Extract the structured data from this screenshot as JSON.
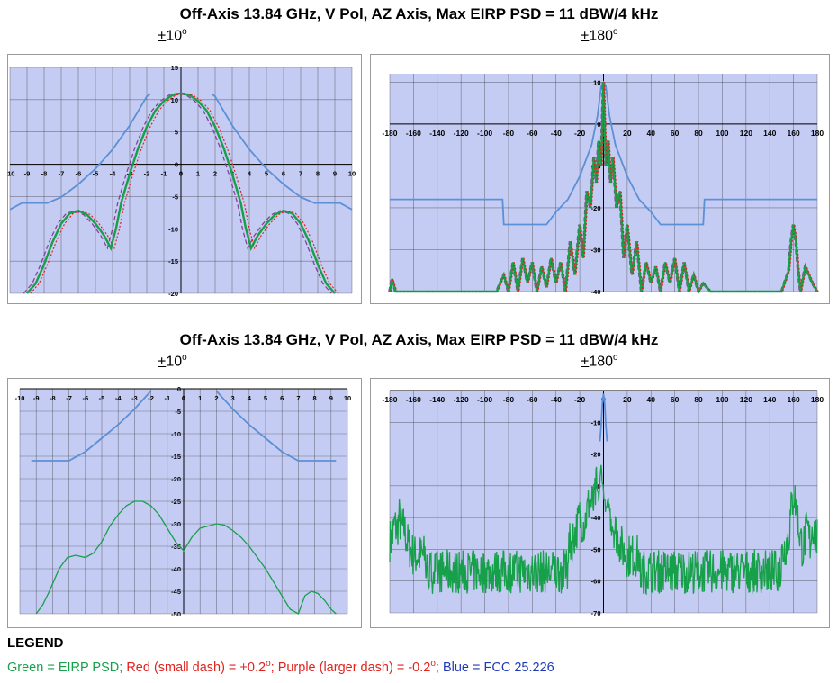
{
  "titles": {
    "top": "Off-Axis 13.84 GHz, V Pol, AZ Axis, Max EIRP PSD = 11 dBW/4 kHz",
    "bottom": "Off-Axis 13.84 GHz, V Pol, AZ Axis, Max EIRP PSD = 11 dBW/4 kHz"
  },
  "subtitles": {
    "p1": "10",
    "p2": "180",
    "p3": "10",
    "p4": "180",
    "pm": "+",
    "deg": "o"
  },
  "legend": {
    "heading": "LEGEND",
    "green": "Green = EIRP PSD;",
    "red": "Red (small dash) = +0.2",
    "red_tail": ";",
    "purple": "Purple (larger dash) = -0.2",
    "purple_tail": ";",
    "blue": "Blue = FCC 25.226",
    "deg": "o"
  },
  "colors": {
    "plot_bg": "#c5ccf3",
    "grid": "#2a2a2a",
    "green": "#17a04a",
    "red": "#e0231f",
    "purple": "#8a3f9a",
    "blue": "#5b8fd6"
  },
  "chart_data": [
    {
      "type": "line",
      "xlim": [
        -10,
        10
      ],
      "ylim": [
        -20,
        15
      ],
      "xticks": [
        "-10",
        "-9",
        "-8",
        "-7",
        "-6",
        "-5",
        "-4",
        "-3",
        "-2",
        "-1",
        "0",
        "1",
        "2",
        "3",
        "4",
        "5",
        "6",
        "7",
        "8",
        "9",
        "10"
      ],
      "yticks": [
        "15",
        "10",
        "5",
        "0",
        "-5",
        "-10",
        "-15",
        "-20"
      ],
      "series": [
        {
          "color": "blue",
          "x": [
            -10,
            -9.3,
            -7.8,
            -7,
            -6,
            -5,
            -4,
            -3,
            -2,
            -1.8
          ],
          "y": [
            -7,
            -6,
            -6,
            -5.1,
            -3.1,
            -0.7,
            2.3,
            6,
            10.5,
            10.9
          ]
        },
        {
          "color": "blue",
          "x": [
            1.8,
            2,
            3,
            4,
            5,
            6,
            7,
            7.8,
            9.3,
            10
          ],
          "y": [
            10.9,
            10.5,
            6,
            2.3,
            -0.7,
            -3.1,
            -5.1,
            -6,
            -6,
            -7
          ]
        },
        {
          "color": "green",
          "x": [
            -9,
            -8.5,
            -8,
            -7.5,
            -7,
            -6.5,
            -6,
            -5.5,
            -5,
            -4.5,
            -4.1,
            -3.8,
            -3.5,
            -3,
            -2.5,
            -2,
            -1.5,
            -1,
            -0.5,
            0,
            0.5,
            1,
            1.5,
            2,
            2.5,
            3,
            3.5,
            3.8,
            4.1,
            4.5,
            5,
            5.5,
            6,
            6.5,
            7,
            7.5,
            8,
            8.5,
            9
          ],
          "y": [
            -20,
            -18.5,
            -15.5,
            -12,
            -9.2,
            -7.6,
            -7.2,
            -7.8,
            -9.2,
            -11,
            -13,
            -10,
            -6,
            -1.5,
            2.5,
            5.8,
            8.3,
            9.8,
            10.7,
            11,
            10.7,
            9.8,
            8.3,
            5.8,
            2.5,
            -1.5,
            -6,
            -10,
            -13,
            -11,
            -9.2,
            -7.8,
            -7.2,
            -7.6,
            -9.2,
            -12,
            -15.5,
            -18.5,
            -20
          ]
        }
      ]
    },
    {
      "type": "line",
      "xlim": [
        -180,
        180
      ],
      "ylim": [
        -40,
        12
      ],
      "xticks": [
        "-180",
        "-160",
        "-140",
        "-120",
        "-100",
        "-80",
        "-60",
        "-40",
        "-20",
        "0",
        "20",
        "40",
        "60",
        "80",
        "100",
        "120",
        "140",
        "160",
        "180"
      ],
      "yticks": [
        "10",
        "0",
        "-10",
        "-20",
        "-30",
        "-40"
      ],
      "series": [
        {
          "color": "blue",
          "x": [
            -180,
            -105,
            -104,
            -85,
            -84,
            -48,
            -40,
            -30,
            -20,
            -10,
            -5,
            -2,
            0,
            2,
            5,
            10,
            20,
            30,
            40,
            48,
            84,
            85,
            104,
            105,
            180
          ],
          "y": [
            -18,
            -18,
            -18,
            -18,
            -24,
            -24,
            -21,
            -18,
            -12.5,
            -5,
            2,
            9,
            10,
            9,
            2,
            -5,
            -12.5,
            -18,
            -21,
            -24,
            -24,
            -18,
            -18,
            -18,
            -18
          ]
        },
        {
          "color": "green",
          "x": [
            -180,
            -178,
            -175,
            -170,
            -100,
            -90,
            -84,
            -80,
            -76,
            -72,
            -68,
            -64,
            -60,
            -56,
            -52,
            -48,
            -44,
            -40,
            -36,
            -32,
            -28,
            -24,
            -20,
            -17,
            -14,
            -11,
            -8,
            -6,
            -4,
            -2,
            0,
            2,
            4,
            6,
            8,
            11,
            14,
            17,
            20,
            24,
            28,
            32,
            36,
            40,
            44,
            48,
            52,
            56,
            60,
            64,
            68,
            72,
            76,
            80,
            84,
            90,
            100,
            140,
            150,
            156,
            158,
            160,
            162,
            164,
            166,
            170,
            176,
            180
          ],
          "y": [
            -40,
            -37,
            -40,
            -40,
            -40,
            -40,
            -36,
            -40,
            -33,
            -40,
            -32,
            -38,
            -33,
            -40,
            -34,
            -39,
            -32,
            -38,
            -33,
            -40,
            -28,
            -36,
            -24,
            -32,
            -16,
            -20,
            -8,
            -14,
            -4,
            -10,
            10,
            -10,
            -4,
            -14,
            -8,
            -20,
            -16,
            -32,
            -24,
            -36,
            -28,
            -40,
            -33,
            -38,
            -34,
            -40,
            -33,
            -38,
            -32,
            -40,
            -33,
            -40,
            -36,
            -40,
            -38,
            -40,
            -40,
            -40,
            -40,
            -35,
            -28,
            -24,
            -28,
            -35,
            -40,
            -34,
            -38,
            -40
          ]
        }
      ]
    },
    {
      "type": "line",
      "xlim": [
        -10,
        10
      ],
      "ylim": [
        -50,
        0
      ],
      "xticks": [
        "-10",
        "-9",
        "-8",
        "-7",
        "-6",
        "-5",
        "-4",
        "-3",
        "-2",
        "-1",
        "0",
        "1",
        "2",
        "3",
        "4",
        "5",
        "6",
        "7",
        "8",
        "9",
        "10"
      ],
      "yticks": [
        "0",
        "-5",
        "-10",
        "-15",
        "-20",
        "-25",
        "-30",
        "-35",
        "-40",
        "-45",
        "-50"
      ],
      "series": [
        {
          "color": "blue",
          "x": [
            -9.3,
            -7,
            -6,
            -5,
            -4,
            -3,
            -2
          ],
          "y": [
            -16,
            -16,
            -14,
            -11,
            -8,
            -4.5,
            -0.5
          ]
        },
        {
          "color": "blue",
          "x": [
            2,
            3,
            4,
            5,
            6,
            7,
            9.3
          ],
          "y": [
            -0.5,
            -4.5,
            -8,
            -11,
            -14,
            -16,
            -16
          ]
        },
        {
          "color": "green",
          "x": [
            -9,
            -8.6,
            -8.2,
            -7.6,
            -7.1,
            -6.6,
            -6,
            -5.5,
            -5,
            -4.5,
            -4,
            -3.5,
            -3,
            -2.5,
            -2,
            -1.5,
            -1,
            -0.5,
            0,
            0.5,
            1,
            1.5,
            2,
            2.5,
            3,
            3.5,
            4,
            4.5,
            5,
            5.5,
            6,
            6.5,
            7,
            7.4,
            7.8,
            8.2,
            8.6,
            9,
            9.3
          ],
          "y": [
            -50,
            -48,
            -45,
            -40,
            -37.5,
            -37,
            -37.5,
            -36.5,
            -34,
            -30.5,
            -28,
            -26,
            -25,
            -25,
            -26,
            -28,
            -31,
            -34,
            -36,
            -33,
            -31,
            -30.5,
            -30,
            -30.3,
            -31.5,
            -33,
            -35,
            -37.5,
            -40,
            -43,
            -46,
            -49,
            -50,
            -46,
            -45,
            -45.5,
            -47,
            -49,
            -50
          ]
        }
      ]
    },
    {
      "type": "line",
      "xlim": [
        -180,
        180
      ],
      "ylim": [
        -70,
        0
      ],
      "xticks": [
        "-180",
        "-160",
        "-140",
        "-120",
        "-100",
        "-80",
        "-60",
        "-40",
        "-20",
        "0",
        "20",
        "40",
        "60",
        "80",
        "100",
        "120",
        "140",
        "160",
        "180"
      ],
      "yticks": [
        "-10",
        "-20",
        "-30",
        "-40",
        "-50",
        "-60",
        "-70"
      ],
      "series": [
        {
          "color": "blue",
          "x": [
            -3,
            -2,
            -1,
            0,
            1,
            2,
            3
          ],
          "y": [
            -16,
            -11,
            -4,
            -1,
            -4,
            -11,
            -16
          ]
        },
        {
          "color": "green",
          "x": [
            -178,
            -176,
            -174,
            -172,
            -170,
            -168,
            -165,
            -160,
            -100,
            -60,
            -40,
            -30,
            -24,
            -20,
            -16,
            -12,
            -8,
            -6,
            -4,
            -2,
            0,
            2,
            4,
            8,
            12,
            16,
            20,
            40,
            100,
            150,
            156,
            158,
            160,
            162,
            164,
            166,
            168,
            170,
            172,
            174,
            176,
            178,
            180
          ],
          "y": [
            -47,
            -42,
            -44,
            -40,
            -44,
            -43,
            -48,
            -52,
            -52,
            -52,
            -52,
            -50,
            -45,
            -40,
            -42,
            -35,
            -36,
            -30,
            -34,
            -24,
            -32,
            -38,
            -35,
            -42,
            -46,
            -50,
            -52,
            -52,
            -52,
            -52,
            -46,
            -38,
            -32,
            -36,
            -42,
            -47,
            -50,
            -46,
            -44,
            -48,
            -42,
            -45,
            -47
          ],
          "noise": true
        }
      ]
    }
  ]
}
